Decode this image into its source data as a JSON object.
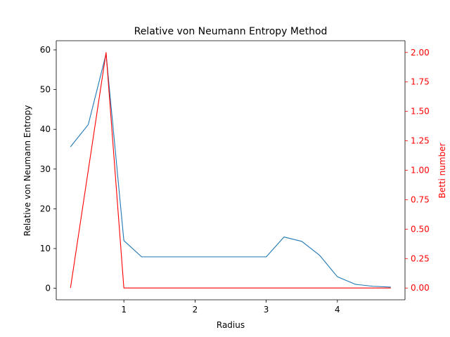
{
  "chart_data": {
    "type": "line",
    "title": "Relative von Neumann Entropy Method",
    "xlabel": "Radius",
    "ylabel": "Relative von Neumann Entropy",
    "ylabel_right": "Betti number",
    "xlim": [
      0.05,
      4.95
    ],
    "ylim": [
      -2.9,
      62.3
    ],
    "ylim_right": [
      -0.1,
      2.1
    ],
    "xticks": [
      "1",
      "2",
      "3",
      "4"
    ],
    "yticks": [
      "0",
      "10",
      "20",
      "30",
      "40",
      "50",
      "60"
    ],
    "yticks_right": [
      "0.00",
      "0.25",
      "0.50",
      "0.75",
      "1.00",
      "1.25",
      "1.50",
      "1.75",
      "2.00"
    ],
    "grid": false,
    "x": [
      0.25,
      0.5,
      0.75,
      1.0,
      1.25,
      1.5,
      1.75,
      2.0,
      2.25,
      2.5,
      2.75,
      3.0,
      3.25,
      3.5,
      3.75,
      4.0,
      4.25,
      4.5,
      4.75
    ],
    "series": [
      {
        "axis": "left",
        "color": "#1f77b4",
        "values": [
          35.6,
          41.2,
          59.0,
          12.0,
          7.9,
          7.9,
          7.9,
          7.9,
          7.9,
          7.9,
          7.9,
          7.9,
          12.9,
          11.8,
          8.3,
          2.9,
          1.0,
          0.5,
          0.3
        ]
      },
      {
        "axis": "right",
        "color": "#ff0000",
        "values": [
          0,
          1,
          2,
          0,
          0,
          0,
          0,
          0,
          0,
          0,
          0,
          0,
          0,
          0,
          0,
          0,
          0,
          0,
          0
        ]
      }
    ]
  }
}
